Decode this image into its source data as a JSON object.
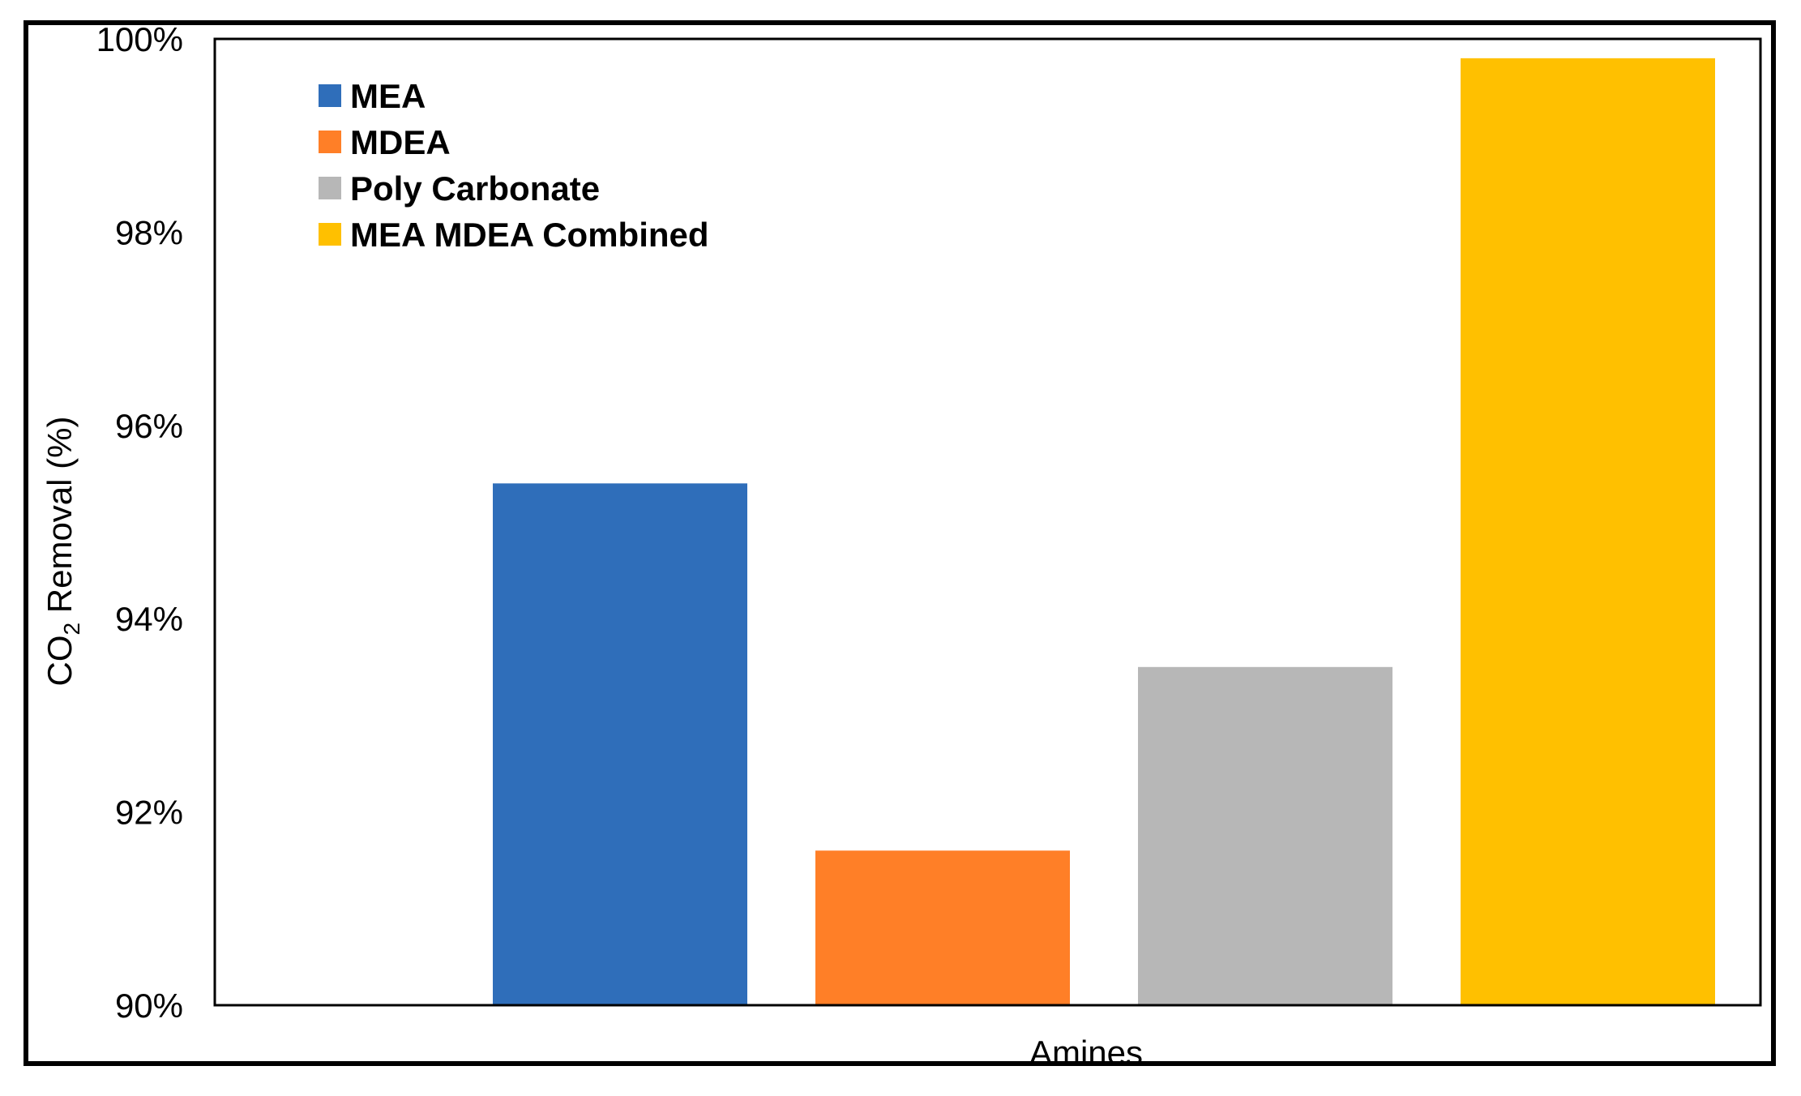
{
  "chart_data": {
    "type": "bar",
    "categories": [
      "MEA",
      "MDEA",
      "Poly Carbonate",
      "MEA MDEA Combined"
    ],
    "series": [
      {
        "name": "MEA",
        "values": [
          95.4,
          null,
          null,
          null
        ],
        "color": "#2F6EBA"
      },
      {
        "name": "MDEA",
        "values": [
          null,
          91.6,
          null,
          null
        ],
        "color": "#FF7F27"
      },
      {
        "name": "Poly Carbonate",
        "values": [
          null,
          null,
          93.5,
          null
        ],
        "color": "#B7B7B7"
      },
      {
        "name": "MEA MDEA Combined",
        "values": [
          null,
          null,
          null,
          99.8
        ],
        "color": "#FFC000"
      }
    ],
    "values": [
      95.4,
      91.6,
      93.5,
      99.8
    ],
    "colors": [
      "#2F6EBA",
      "#FF7F27",
      "#B7B7B7",
      "#FFC000"
    ],
    "title": "",
    "xlabel": "Amines",
    "ylabel": {
      "prefix": "CO",
      "subscript": "2",
      "suffix": " Removal (%)"
    },
    "ylim": [
      90,
      100
    ],
    "yticks": [
      "90%",
      "92%",
      "94%",
      "96%",
      "98%",
      "100%"
    ],
    "ytick_values": [
      90,
      92,
      94,
      96,
      98,
      100
    ],
    "grid": false,
    "legend": {
      "placement": "top-left",
      "entries": [
        "MEA",
        "MDEA",
        "Poly Carbonate",
        "MEA MDEA Combined"
      ]
    }
  }
}
